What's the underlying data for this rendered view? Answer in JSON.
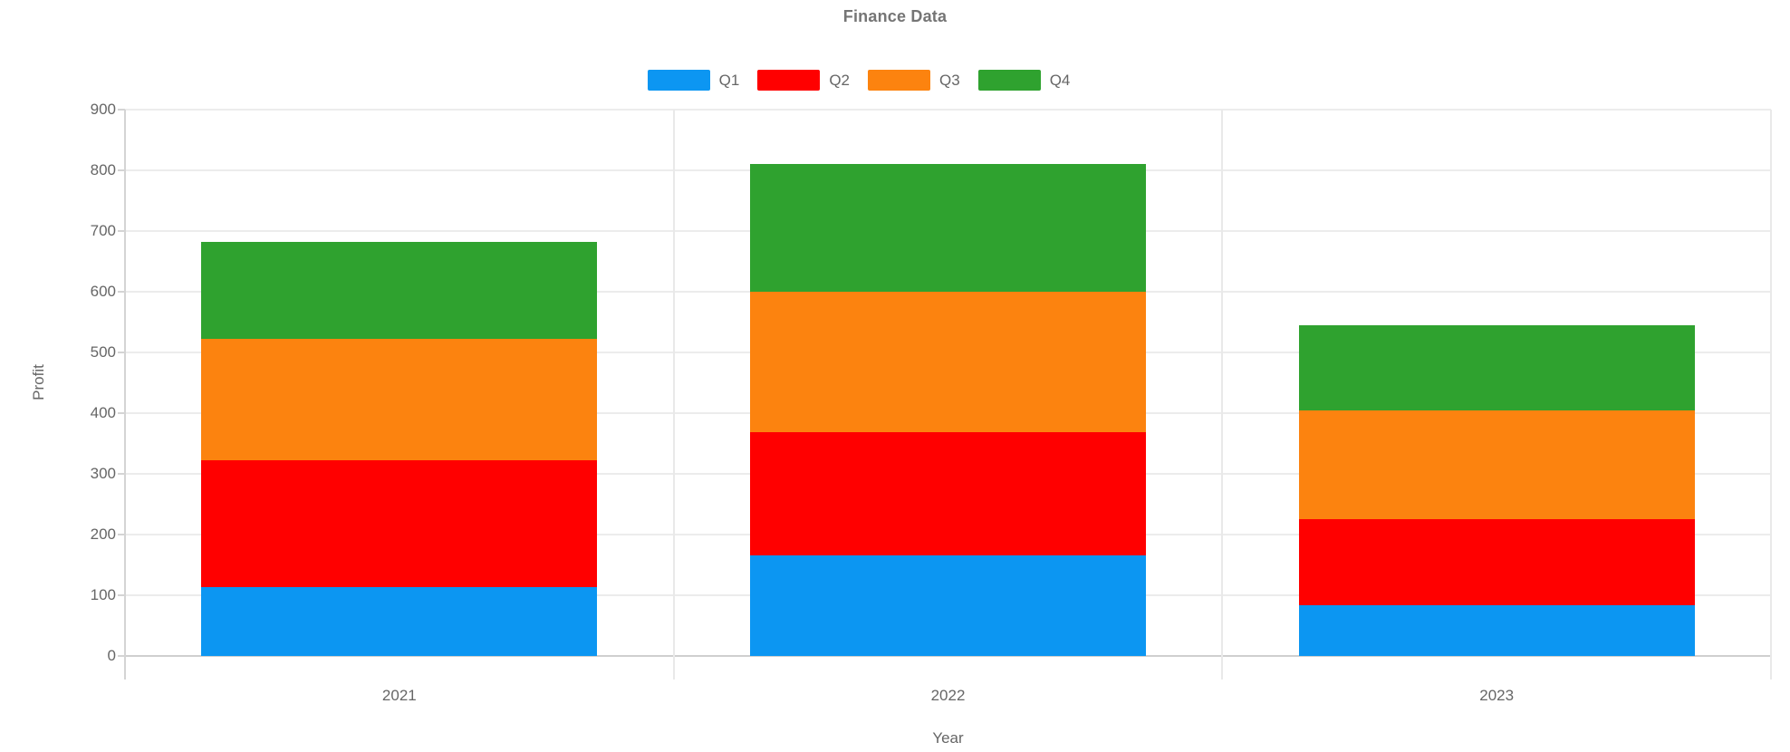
{
  "title": "Finance Data",
  "axes": {
    "x_label": "Year",
    "y_label": "Profit",
    "y_tick_labels": [
      "0",
      "100",
      "200",
      "300",
      "400",
      "500",
      "600",
      "700",
      "800",
      "900"
    ]
  },
  "colors": {
    "title_text": "#757575",
    "axis_text": "#666666",
    "gridline": "#ECECEC",
    "axis_line": "#CFCFCF",
    "background": "#FFFFFF"
  },
  "chart_data": {
    "type": "bar",
    "stacked": true,
    "title": "Finance Data",
    "xlabel": "Year",
    "ylabel": "Profit",
    "ylim": [
      0,
      900
    ],
    "ytick_step": 100,
    "grid": true,
    "legend_position": "top",
    "categories": [
      "2021",
      "2022",
      "2023"
    ],
    "series": [
      {
        "name": "Q1",
        "color": "#0C96F2",
        "values": [
          113,
          166,
          84
        ]
      },
      {
        "name": "Q2",
        "color": "#FF0000",
        "values": [
          209,
          202,
          141
        ]
      },
      {
        "name": "Q3",
        "color": "#FC830F",
        "values": [
          200,
          232,
          180
        ]
      },
      {
        "name": "Q4",
        "color": "#2FA22F",
        "values": [
          160,
          210,
          140
        ]
      }
    ],
    "stack_totals": [
      682,
      810,
      545
    ]
  }
}
